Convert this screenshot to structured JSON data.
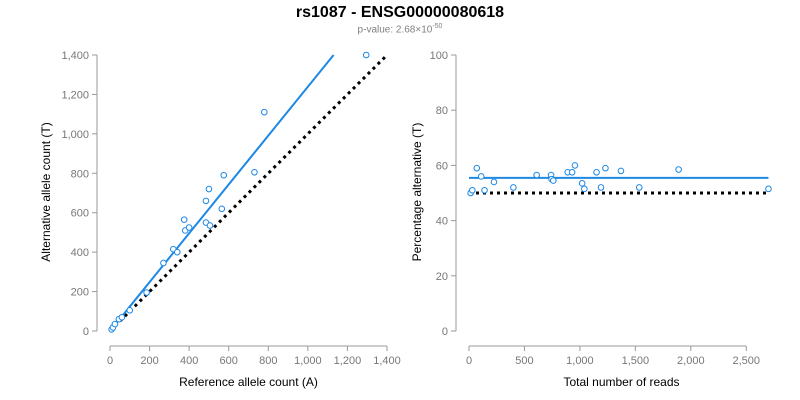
{
  "title": "rs1087 - ENSG00000080618",
  "subtitle": {
    "prefix": "p-value: 2.68×10",
    "exponent": "-50"
  },
  "colors": {
    "points": "#1E88E5",
    "fit": "#1E88E5",
    "reference": "#000000",
    "axis": "#999999",
    "tick_text": "#777777"
  },
  "chart_data": [
    {
      "type": "scatter",
      "xlabel": "Reference allele count (A)",
      "ylabel": "Alternative allele count (T)",
      "xlim": [
        0,
        1400
      ],
      "ylim": [
        0,
        1400
      ],
      "xticks": [
        0,
        200,
        400,
        600,
        800,
        1000,
        1200,
        1400
      ],
      "xtick_labels": [
        "0",
        "200",
        "400",
        "600",
        "800",
        "1,000",
        "1,200",
        "1,400"
      ],
      "yticks": [
        0,
        200,
        400,
        600,
        800,
        1000,
        1200,
        1400
      ],
      "ytick_labels": [
        "0",
        "200",
        "400",
        "600",
        "800",
        "1,000",
        "1,200",
        "1,400"
      ],
      "points": [
        {
          "x": 8,
          "y": 8
        },
        {
          "x": 15,
          "y": 18
        },
        {
          "x": 25,
          "y": 35
        },
        {
          "x": 45,
          "y": 60
        },
        {
          "x": 60,
          "y": 70
        },
        {
          "x": 100,
          "y": 105
        },
        {
          "x": 185,
          "y": 195
        },
        {
          "x": 270,
          "y": 345
        },
        {
          "x": 320,
          "y": 415
        },
        {
          "x": 340,
          "y": 400
        },
        {
          "x": 375,
          "y": 565
        },
        {
          "x": 380,
          "y": 510
        },
        {
          "x": 400,
          "y": 525
        },
        {
          "x": 485,
          "y": 660
        },
        {
          "x": 485,
          "y": 550
        },
        {
          "x": 500,
          "y": 720
        },
        {
          "x": 505,
          "y": 535
        },
        {
          "x": 565,
          "y": 620
        },
        {
          "x": 575,
          "y": 790
        },
        {
          "x": 730,
          "y": 805
        },
        {
          "x": 780,
          "y": 1110
        },
        {
          "x": 1295,
          "y": 1400
        }
      ],
      "fit_line": [
        {
          "x": 0,
          "y": 0
        },
        {
          "x": 1130,
          "y": 1400
        }
      ],
      "reference_line": [
        {
          "x": 0,
          "y": 0
        },
        {
          "x": 1400,
          "y": 1400
        }
      ],
      "grid": false
    },
    {
      "type": "scatter",
      "xlabel": "Total number of reads",
      "ylabel": "Percentage alternative (T)",
      "xlim": [
        0,
        2750
      ],
      "ylim": [
        0,
        100
      ],
      "xticks": [
        0,
        500,
        1000,
        1500,
        2000,
        2500
      ],
      "xtick_labels": [
        "0",
        "500",
        "1,000",
        "1,500",
        "2,000",
        "2,500"
      ],
      "yticks": [
        0,
        20,
        40,
        60,
        80,
        100
      ],
      "ytick_labels": [
        "0",
        "20",
        "40",
        "60",
        "80",
        "100"
      ],
      "points": [
        {
          "x": 15,
          "y": 50
        },
        {
          "x": 30,
          "y": 51
        },
        {
          "x": 70,
          "y": 59
        },
        {
          "x": 110,
          "y": 56
        },
        {
          "x": 140,
          "y": 51
        },
        {
          "x": 225,
          "y": 54
        },
        {
          "x": 400,
          "y": 52
        },
        {
          "x": 610,
          "y": 56.5
        },
        {
          "x": 740,
          "y": 56.5
        },
        {
          "x": 745,
          "y": 55
        },
        {
          "x": 760,
          "y": 54.5
        },
        {
          "x": 890,
          "y": 57.5
        },
        {
          "x": 930,
          "y": 57.5
        },
        {
          "x": 955,
          "y": 60
        },
        {
          "x": 1020,
          "y": 53.5
        },
        {
          "x": 1040,
          "y": 51.5
        },
        {
          "x": 1150,
          "y": 57.5
        },
        {
          "x": 1190,
          "y": 52
        },
        {
          "x": 1230,
          "y": 59
        },
        {
          "x": 1370,
          "y": 58
        },
        {
          "x": 1535,
          "y": 52
        },
        {
          "x": 1890,
          "y": 58.5
        },
        {
          "x": 2700,
          "y": 51.5
        }
      ],
      "fit_line": [
        {
          "x": 0,
          "y": 55.5
        },
        {
          "x": 2700,
          "y": 55.5
        }
      ],
      "reference_line": [
        {
          "x": 0,
          "y": 50
        },
        {
          "x": 2700,
          "y": 50
        }
      ],
      "grid": false
    }
  ]
}
